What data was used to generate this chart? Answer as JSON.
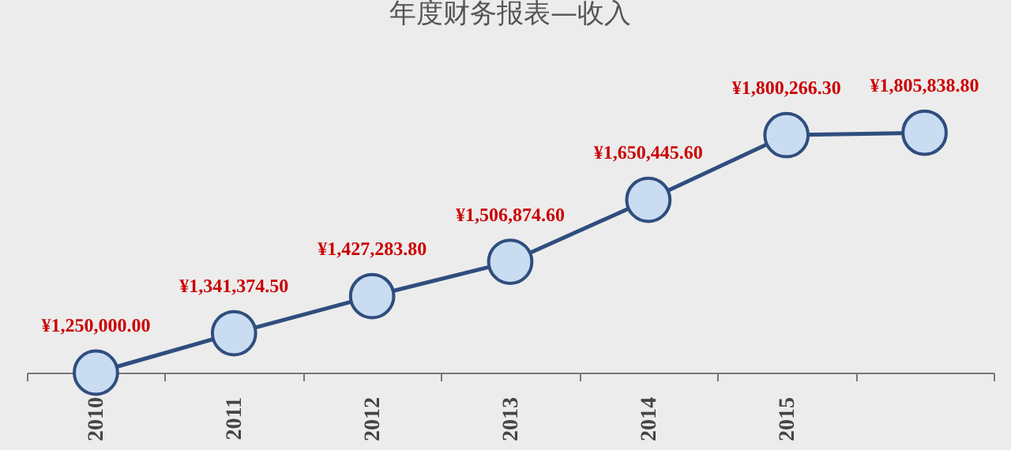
{
  "chart_data": {
    "type": "line",
    "title": "年度财务报表—收入",
    "categories": [
      "2010",
      "2011",
      "2012",
      "2013",
      "2014",
      "2015",
      null
    ],
    "series": [
      {
        "color": "#2f4d7e",
        "values": [
          1250000,
          1341374.5,
          1427283.8,
          1506874.6,
          1650445.6,
          1800266.3,
          1805838.8
        ],
        "value_labels": [
          "¥1,250,000.00",
          "¥1,341,374.50",
          "¥1,427,283.80",
          "¥1,506,874.60",
          "¥1,650,445.60",
          "¥1,800,266.30",
          "¥1,805,838.80"
        ]
      }
    ],
    "marker": "circle",
    "grid": false,
    "legend": false
  }
}
